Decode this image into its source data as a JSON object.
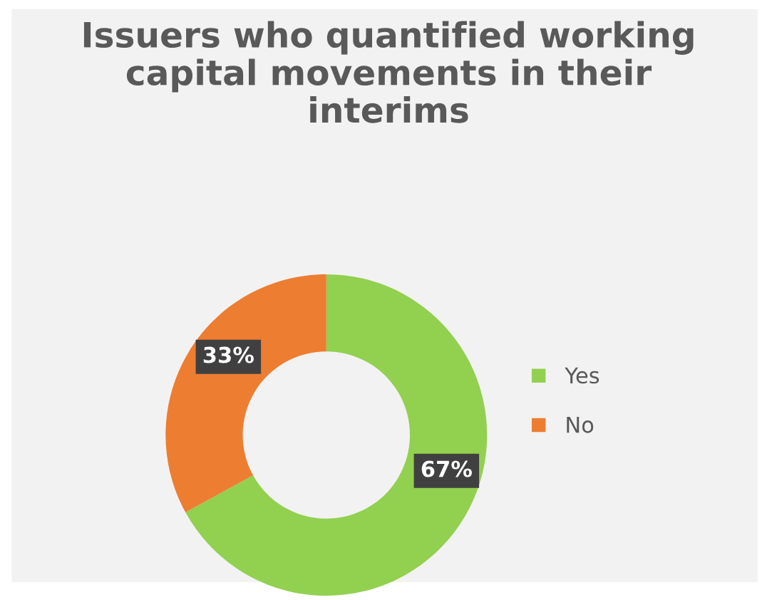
{
  "chart_data": {
    "type": "donut",
    "title": "Issuers who quantified working\ncapital movements in their\ninterims",
    "categories": [
      "Yes",
      "No"
    ],
    "values": [
      67,
      33
    ],
    "colors": [
      "#92d050",
      "#ed7d31"
    ],
    "value_labels": [
      "67%",
      "33%"
    ],
    "legend": "right"
  }
}
